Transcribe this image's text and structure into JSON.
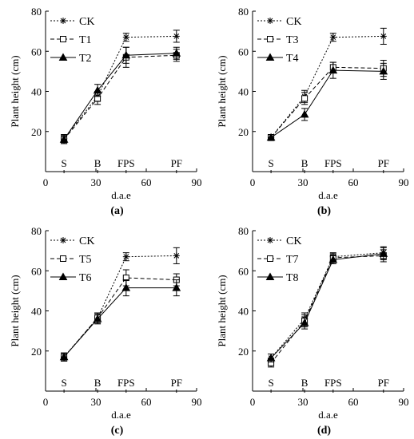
{
  "chart_data": [
    {
      "type": "line",
      "panel_label": "(a)",
      "xlabel": "d.a.e",
      "ylabel": "Plant height (cm)",
      "xlim": [
        0,
        90
      ],
      "ylim": [
        0,
        80
      ],
      "xticks": [
        0,
        30,
        60,
        90
      ],
      "yticks": [
        20,
        40,
        60,
        80
      ],
      "stage_labels": [
        {
          "text": "S",
          "x": 11
        },
        {
          "text": "B",
          "x": 31
        },
        {
          "text": "FPS",
          "x": 48
        },
        {
          "text": "PF",
          "x": 78
        }
      ],
      "x": [
        11,
        31,
        48,
        78
      ],
      "series": [
        {
          "name": "CK",
          "style": "dotted",
          "marker": "asterisk",
          "values": [
            16.5,
            37.5,
            67,
            67.5
          ],
          "err": [
            2,
            2.5,
            2,
            3
          ]
        },
        {
          "name": "T1",
          "style": "dashed",
          "marker": "square",
          "values": [
            16,
            36.5,
            57,
            58
          ],
          "err": [
            2,
            3,
            5,
            3
          ]
        },
        {
          "name": "T2",
          "style": "solid",
          "marker": "triangle",
          "values": [
            16,
            40.5,
            58,
            59
          ],
          "err": [
            2,
            3,
            4,
            3
          ]
        }
      ],
      "legend": "top-left"
    },
    {
      "type": "line",
      "panel_label": "(b)",
      "xlabel": "d.a.e",
      "ylabel": "Plant height (cm)",
      "xlim": [
        0,
        90
      ],
      "ylim": [
        0,
        80
      ],
      "xticks": [
        0,
        30,
        60,
        90
      ],
      "yticks": [
        20,
        40,
        60,
        80
      ],
      "stage_labels": [
        {
          "text": "S",
          "x": 11
        },
        {
          "text": "B",
          "x": 31
        },
        {
          "text": "FPS",
          "x": 48
        },
        {
          "text": "PF",
          "x": 78
        }
      ],
      "x": [
        11,
        31,
        48,
        78
      ],
      "series": [
        {
          "name": "CK",
          "style": "dotted",
          "marker": "asterisk",
          "values": [
            17,
            37.5,
            67,
            67.5
          ],
          "err": [
            1.5,
            3,
            2,
            4
          ]
        },
        {
          "name": "T3",
          "style": "dashed",
          "marker": "square",
          "values": [
            17,
            36.5,
            52,
            51.5
          ],
          "err": [
            1.5,
            3,
            2.5,
            4
          ]
        },
        {
          "name": "T4",
          "style": "solid",
          "marker": "triangle",
          "values": [
            17,
            28.5,
            50.5,
            50
          ],
          "err": [
            1.5,
            3,
            4,
            4
          ]
        }
      ],
      "legend": "top-left"
    },
    {
      "type": "line",
      "panel_label": "(c)",
      "xlabel": "d.a.e",
      "ylabel": "Plant height (cm)",
      "xlim": [
        0,
        90
      ],
      "ylim": [
        0,
        80
      ],
      "xticks": [
        0,
        30,
        60,
        90
      ],
      "yticks": [
        20,
        40,
        60,
        80
      ],
      "stage_labels": [
        {
          "text": "S",
          "x": 11
        },
        {
          "text": "B",
          "x": 31
        },
        {
          "text": "FPS",
          "x": 48
        },
        {
          "text": "PF",
          "x": 78
        }
      ],
      "x": [
        11,
        31,
        48,
        78
      ],
      "series": [
        {
          "name": "CK",
          "style": "dotted",
          "marker": "asterisk",
          "values": [
            17,
            36.5,
            67,
            67.5
          ],
          "err": [
            2,
            2.5,
            2,
            4
          ]
        },
        {
          "name": "T5",
          "style": "dashed",
          "marker": "square",
          "values": [
            17,
            36.5,
            56.5,
            55.5
          ],
          "err": [
            2,
            2.5,
            4,
            3
          ]
        },
        {
          "name": "T6",
          "style": "solid",
          "marker": "triangle",
          "values": [
            17,
            36,
            51.5,
            51.5
          ],
          "err": [
            2,
            2.5,
            4,
            4
          ]
        }
      ],
      "legend": "top-left"
    },
    {
      "type": "line",
      "panel_label": "(d)",
      "xlabel": "d.a.e",
      "ylabel": "Plant height (cm)",
      "xlim": [
        0,
        90
      ],
      "ylim": [
        0,
        80
      ],
      "xticks": [
        0,
        30,
        60,
        90
      ],
      "yticks": [
        20,
        40,
        60,
        80
      ],
      "stage_labels": [
        {
          "text": "S",
          "x": 11
        },
        {
          "text": "B",
          "x": 31
        },
        {
          "text": "FPS",
          "x": 48
        },
        {
          "text": "PF",
          "x": 78
        }
      ],
      "x": [
        11,
        31,
        48,
        78
      ],
      "series": [
        {
          "name": "CK",
          "style": "dotted",
          "marker": "asterisk",
          "values": [
            16.5,
            36,
            67,
            69
          ],
          "err": [
            2,
            3,
            2,
            3
          ]
        },
        {
          "name": "T7",
          "style": "dashed",
          "marker": "square",
          "values": [
            14,
            35,
            66.5,
            67.5
          ],
          "err": [
            2,
            3,
            2,
            3
          ]
        },
        {
          "name": "T8",
          "style": "solid",
          "marker": "triangle",
          "values": [
            16.5,
            34,
            65.5,
            68.5
          ],
          "err": [
            2,
            3,
            2,
            3
          ]
        }
      ],
      "legend": "top-left"
    }
  ]
}
